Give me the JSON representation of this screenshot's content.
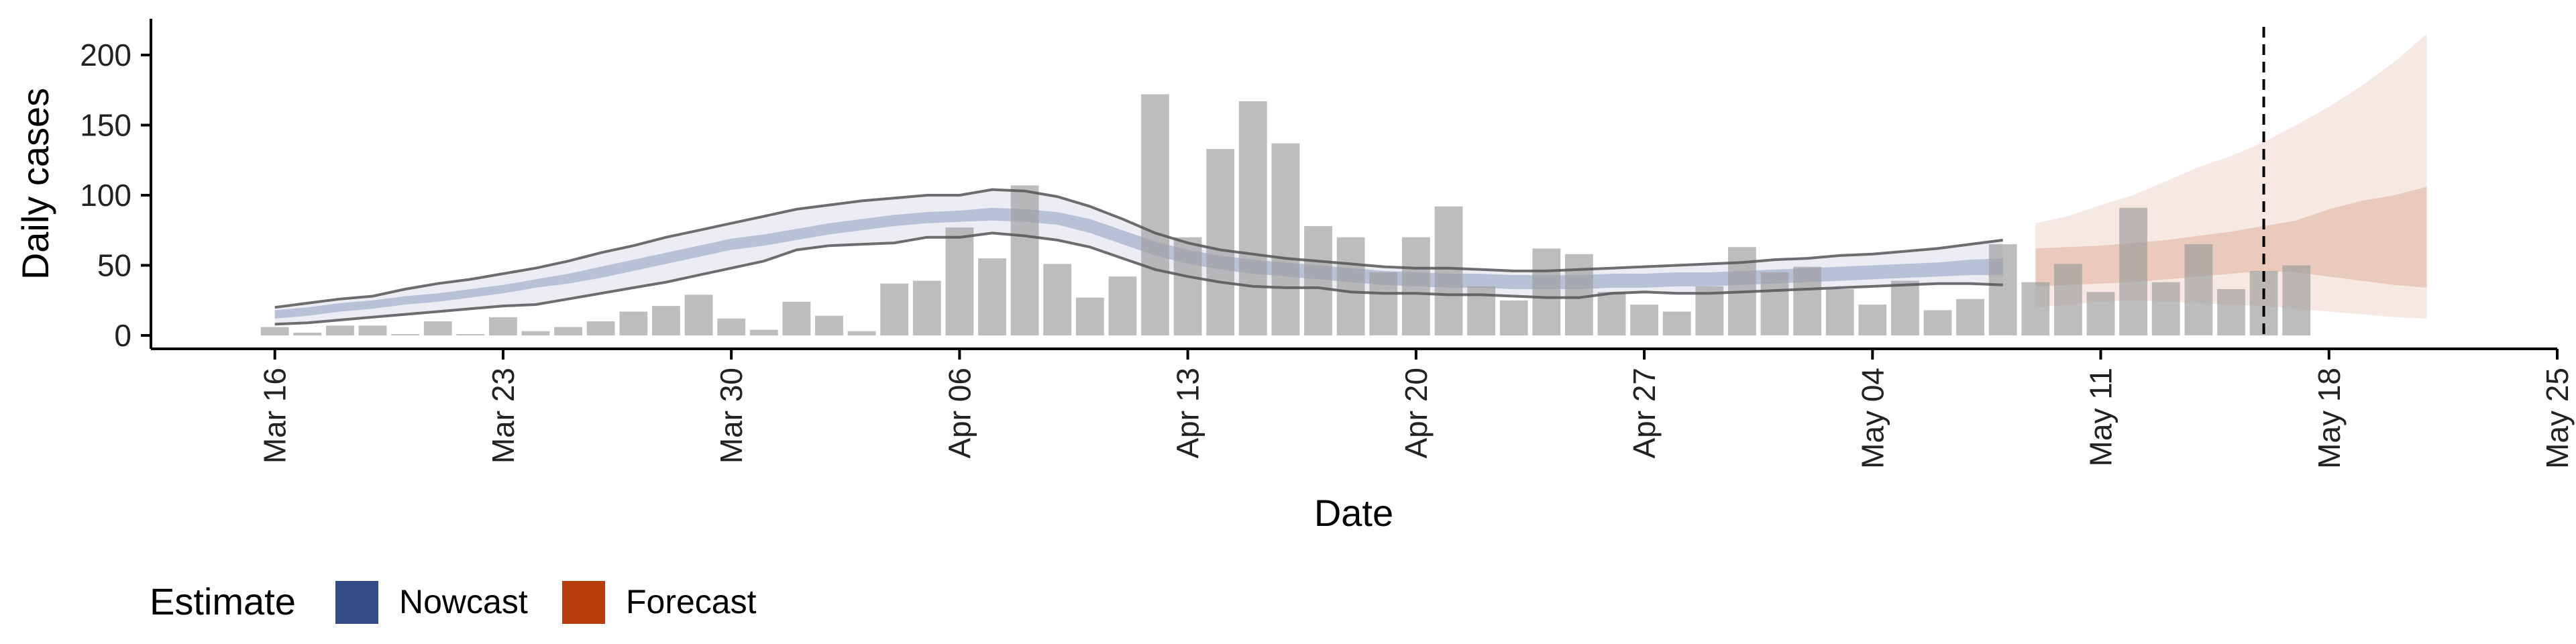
{
  "chart_data": {
    "type": "bar",
    "title": "",
    "xlabel": "Date",
    "ylabel": "Daily cases",
    "ylim": [
      0,
      225
    ],
    "yticks": [
      0,
      50,
      100,
      150,
      200
    ],
    "x_start_date": "Mar 16",
    "xticks": [
      {
        "label": "Mar 16",
        "day": 0
      },
      {
        "label": "Mar 23",
        "day": 7
      },
      {
        "label": "Mar 30",
        "day": 14
      },
      {
        "label": "Apr 06",
        "day": 21
      },
      {
        "label": "Apr 13",
        "day": 28
      },
      {
        "label": "Apr 20",
        "day": 35
      },
      {
        "label": "Apr 27",
        "day": 42
      },
      {
        "label": "May 04",
        "day": 49
      },
      {
        "label": "May 11",
        "day": 56
      },
      {
        "label": "May 18",
        "day": 63
      },
      {
        "label": "May 25",
        "day": 70
      }
    ],
    "xlim": [
      -3.8,
      70
    ],
    "reference_line_day": 61,
    "cases": [
      6,
      2,
      7,
      7,
      0,
      10,
      0,
      13,
      3,
      6,
      10,
      17,
      21,
      29,
      12,
      4,
      24,
      14,
      3,
      37,
      39,
      77,
      55,
      107,
      51,
      27,
      42,
      172,
      70,
      133,
      167,
      137,
      78,
      70,
      45,
      70,
      92,
      35,
      25,
      62,
      58,
      31,
      22,
      17,
      35,
      63,
      45,
      49,
      33,
      22,
      39,
      18,
      26,
      65,
      38,
      51,
      31,
      91,
      38,
      65,
      33,
      46,
      50
    ],
    "nowcast": {
      "name": "Nowcast",
      "color": "#3b4f8c",
      "start_day": 0,
      "median": [
        15,
        17,
        20,
        22,
        25,
        27,
        30,
        33,
        37,
        40,
        45,
        50,
        55,
        60,
        65,
        68,
        72,
        76,
        79,
        82,
        84,
        85,
        87,
        86,
        84,
        78,
        70,
        62,
        56,
        52,
        49,
        47,
        45,
        43,
        41,
        40,
        39,
        39,
        38,
        38,
        38,
        39,
        39,
        40,
        40,
        41,
        42,
        43,
        44,
        45,
        46,
        47,
        48,
        48
      ],
      "lower50": [
        12,
        14,
        17,
        19,
        22,
        24,
        27,
        30,
        34,
        37,
        41,
        46,
        51,
        56,
        61,
        64,
        68,
        72,
        75,
        78,
        80,
        81,
        82,
        81,
        79,
        73,
        65,
        57,
        51,
        47,
        44,
        42,
        40,
        38,
        36,
        35,
        34,
        34,
        33,
        33,
        33,
        34,
        34,
        35,
        35,
        36,
        37,
        38,
        39,
        40,
        41,
        42,
        43,
        43
      ],
      "upper50": [
        18,
        20,
        23,
        25,
        28,
        30,
        33,
        36,
        40,
        44,
        49,
        54,
        59,
        64,
        69,
        72,
        76,
        80,
        83,
        86,
        88,
        89,
        91,
        90,
        88,
        83,
        75,
        67,
        61,
        57,
        54,
        52,
        50,
        48,
        46,
        45,
        44,
        44,
        43,
        43,
        43,
        44,
        44,
        45,
        45,
        46,
        47,
        48,
        49,
        50,
        51,
        52,
        54,
        55
      ],
      "lower90": [
        8,
        9,
        11,
        13,
        15,
        17,
        19,
        21,
        22,
        26,
        30,
        34,
        38,
        43,
        48,
        53,
        61,
        64,
        65,
        66,
        70,
        70,
        73,
        71,
        68,
        63,
        55,
        47,
        42,
        38,
        35,
        34,
        34,
        31,
        30,
        30,
        29,
        29,
        28,
        27,
        27,
        30,
        31,
        30,
        30,
        31,
        32,
        33,
        34,
        35,
        36,
        37,
        37,
        36
      ],
      "upper90": [
        20,
        23,
        26,
        28,
        33,
        37,
        40,
        44,
        48,
        53,
        59,
        64,
        70,
        75,
        80,
        85,
        90,
        93,
        96,
        98,
        100,
        100,
        104,
        103,
        99,
        92,
        83,
        73,
        66,
        61,
        58,
        55,
        53,
        51,
        49,
        48,
        48,
        47,
        46,
        46,
        47,
        48,
        49,
        50,
        51,
        52,
        54,
        55,
        57,
        58,
        60,
        62,
        65,
        68
      ]
    },
    "forecast": {
      "name": "Forecast",
      "color": "#b5400f",
      "start_day": 54,
      "median": [
        48,
        48,
        49,
        50,
        52,
        54,
        57,
        60,
        62,
        65,
        68,
        70,
        71
      ],
      "lower50": [
        35,
        36,
        37,
        38,
        40,
        42,
        44,
        46,
        45,
        42,
        39,
        36,
        34
      ],
      "upper50": [
        62,
        63,
        64,
        66,
        68,
        71,
        74,
        78,
        82,
        90,
        96,
        100,
        106
      ],
      "lower90": [
        20,
        22,
        24,
        25,
        24,
        23,
        22,
        21,
        19,
        17,
        15,
        13,
        12
      ],
      "upper90": [
        80,
        85,
        93,
        100,
        110,
        120,
        128,
        138,
        150,
        163,
        178,
        195,
        215
      ]
    },
    "legend": {
      "title": "Estimate",
      "position": "bottom-left",
      "entries": [
        {
          "label": "Nowcast",
          "color": "#344b85"
        },
        {
          "label": "Forecast",
          "color": "#b63d0c"
        }
      ]
    }
  }
}
